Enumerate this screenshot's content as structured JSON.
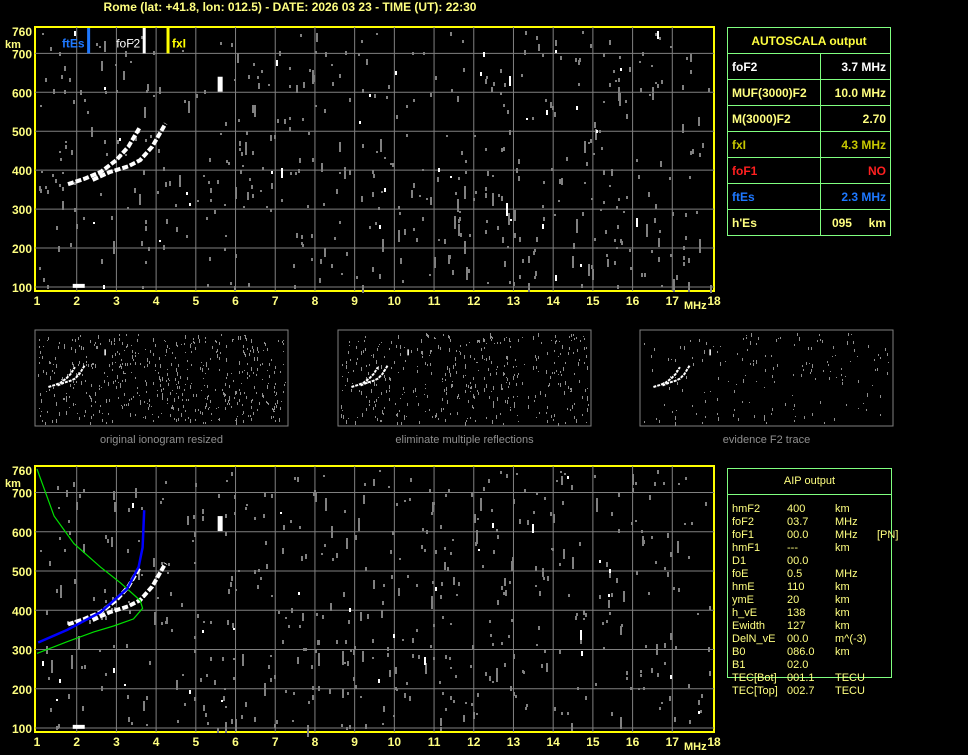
{
  "header": {
    "title": "Rome (lat: +41.8, lon: 012.5) - DATE: 2026 03 23 - TIME (UT): 22:30"
  },
  "colors": {
    "axis": "#ffff00",
    "grid": "#808080",
    "label": "#ffff80",
    "trace": "#ffffff",
    "ftEs": "#1e78ff",
    "foF2": "#ffffff",
    "fxI": "#ffff00",
    "profile": "#00e000",
    "fit": "#0000ff",
    "foF1": "#ff2020"
  },
  "axes": {
    "y_unit": "km",
    "x_unit": "MHz",
    "y_ticks": [
      "100",
      "200",
      "300",
      "400",
      "500",
      "600",
      "700",
      "760"
    ],
    "x_ticks": [
      "1",
      "2",
      "3",
      "4",
      "5",
      "6",
      "7",
      "8",
      "9",
      "10",
      "11",
      "12",
      "13",
      "14",
      "15",
      "16",
      "17",
      "18"
    ]
  },
  "markers": {
    "ftEs": "ftEs",
    "foF2": "foF2",
    "fxI": "fxI"
  },
  "thumbnails": [
    {
      "caption": "original ionogram resized"
    },
    {
      "caption": "eliminate multiple reflections"
    },
    {
      "caption": "evidence F2 trace"
    }
  ],
  "autoscala": {
    "title": "AUTOSCALA output",
    "rows": [
      {
        "label": "foF2",
        "value": "3.7 MHz",
        "color": "#ffffff"
      },
      {
        "label": "MUF(3000)F2",
        "value": "10.0 MHz",
        "color": "#ffff80"
      },
      {
        "label": "M(3000)F2",
        "value": "2.70",
        "color": "#ffff80"
      },
      {
        "label": "fxI",
        "value": "4.3 MHz",
        "color": "#c8c800"
      },
      {
        "label": "foF1",
        "value": "NO",
        "color": "#ff2020"
      },
      {
        "label": "ftEs",
        "value": "2.3 MHz",
        "color": "#1e78ff"
      },
      {
        "label": "h'Es",
        "value": "095     km",
        "color": "#ffff80"
      }
    ]
  },
  "aip": {
    "title": "AIP output",
    "rows": [
      {
        "name": "hmF2",
        "value": "400",
        "unit": "km",
        "extra": ""
      },
      {
        "name": "foF2",
        "value": "03.7",
        "unit": "MHz",
        "extra": ""
      },
      {
        "name": "foF1",
        "value": "00.0",
        "unit": "MHz",
        "extra": "[PN]"
      },
      {
        "name": "hmF1",
        "value": "---",
        "unit": "km",
        "extra": ""
      },
      {
        "name": "D1",
        "value": "00.0",
        "unit": "",
        "extra": ""
      },
      {
        "name": "foE",
        "value": "0.5",
        "unit": "MHz",
        "extra": ""
      },
      {
        "name": "hmE",
        "value": "110",
        "unit": "km",
        "extra": ""
      },
      {
        "name": "ymE",
        "value": "20",
        "unit": "km",
        "extra": ""
      },
      {
        "name": "h_vE",
        "value": "138",
        "unit": "km",
        "extra": ""
      },
      {
        "name": "Ewidth",
        "value": "127",
        "unit": "km",
        "extra": ""
      },
      {
        "name": "DelN_vE",
        "value": "00.0",
        "unit": "m^(-3)",
        "extra": ""
      },
      {
        "name": "B0",
        "value": "086.0",
        "unit": "km",
        "extra": ""
      },
      {
        "name": "B1",
        "value": "02.0",
        "unit": "",
        "extra": ""
      },
      {
        "name": "TEC[Bot]",
        "value": "001.1",
        "unit": "TECU",
        "extra": ""
      },
      {
        "name": "TEC[Top]",
        "value": "002.7",
        "unit": "TECU",
        "extra": ""
      }
    ]
  },
  "chart_data": [
    {
      "type": "scatter",
      "title": "",
      "xlabel": "MHz",
      "ylabel": "km",
      "xlim": [
        1,
        18
      ],
      "ylim": [
        100,
        760
      ],
      "grid": true,
      "series": [
        {
          "values": [
            [
              1.78,
              364
            ],
            [
              2.2,
              378
            ],
            [
              2.6,
              395
            ],
            [
              3.0,
              426
            ],
            [
              3.3,
              460
            ],
            [
              3.59,
              510
            ]
          ]
        },
        {
          "values": [
            [
              2.4,
              375
            ],
            [
              2.83,
              395
            ],
            [
              3.3,
              410
            ],
            [
              3.6,
              426
            ],
            [
              3.9,
              460
            ],
            [
              4.24,
              520
            ]
          ]
        }
      ],
      "markers": [
        {
          "name": "ftEs",
          "x": 2.3
        },
        {
          "name": "foF2",
          "x": 3.7
        },
        {
          "name": "fxI",
          "x": 4.3
        }
      ]
    },
    {
      "type": "line",
      "title": "",
      "xlabel": "MHz",
      "ylabel": "km",
      "xlim": [
        1,
        18
      ],
      "ylim": [
        100,
        760
      ],
      "grid": true,
      "series": [
        {
          "values": [
            [
              1.78,
              364
            ],
            [
              2.2,
              378
            ],
            [
              2.6,
              395
            ],
            [
              3.0,
              426
            ],
            [
              3.3,
              460
            ],
            [
              3.59,
              510
            ]
          ]
        },
        {
          "values": [
            [
              2.4,
              375
            ],
            [
              2.83,
              395
            ],
            [
              3.3,
              410
            ],
            [
              3.6,
              426
            ],
            [
              3.9,
              460
            ],
            [
              4.24,
              520
            ]
          ]
        },
        {
          "values": [
            [
              1.0,
              760
            ],
            [
              1.43,
              640
            ],
            [
              1.93,
              570
            ],
            [
              2.6,
              510
            ],
            [
              3.1,
              470
            ],
            [
              3.6,
              425
            ],
            [
              3.66,
              405
            ],
            [
              3.43,
              378
            ],
            [
              2.93,
              360
            ],
            [
              2.43,
              345
            ],
            [
              1.76,
              320
            ],
            [
              1.0,
              290
            ]
          ]
        },
        {
          "values": [
            [
              1.03,
              318
            ],
            [
              1.76,
              350
            ],
            [
              2.6,
              395
            ],
            [
              3.27,
              455
            ],
            [
              3.56,
              510
            ],
            [
              3.66,
              560
            ],
            [
              3.7,
              655
            ]
          ]
        }
      ]
    }
  ]
}
